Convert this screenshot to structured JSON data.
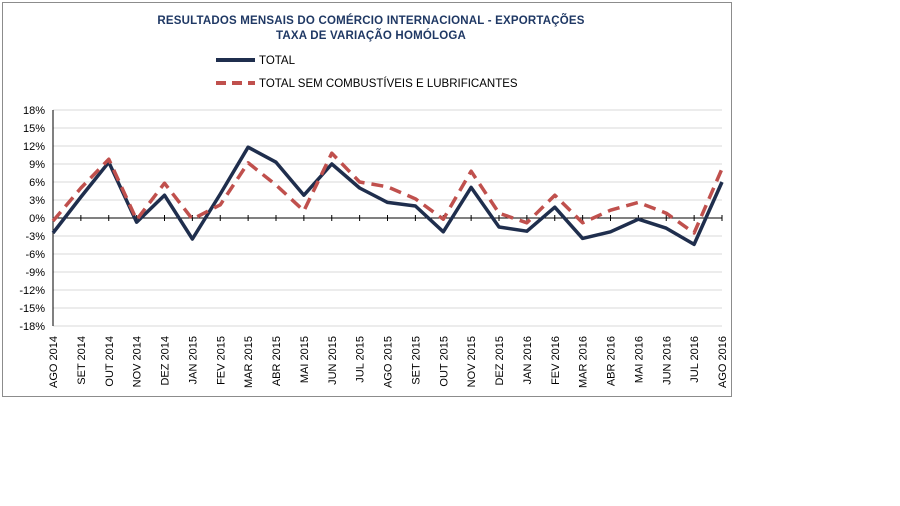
{
  "chart_data": {
    "type": "line",
    "title": "RESULTADOS MENSAIS DO COMÉRCIO INTERNACIONAL  - EXPORTAÇÕES",
    "subtitle": "TAXA DE VARIAÇÃO HOMÓLOGA",
    "categories": [
      "AGO 2014",
      "SET 2014",
      "OUT 2014",
      "NOV 2014",
      "DEZ 2014",
      "JAN 2015",
      "FEV 2015",
      "MAR 2015",
      "ABR 2015",
      "MAI 2015",
      "JUN 2015",
      "JUL 2015",
      "AGO 2015",
      "SET 2015",
      "OUT 2015",
      "NOV 2015",
      "DEZ 2015",
      "JAN 2016",
      "FEV 2016",
      "MAR 2016",
      "ABR 2016",
      "MAI 2016",
      "JUN 2016",
      "JUL 2016",
      "AGO 2016"
    ],
    "ylim": [
      -18,
      18
    ],
    "yticks": [
      -18,
      -15,
      -12,
      -9,
      -6,
      -3,
      0,
      3,
      6,
      9,
      12,
      15,
      18
    ],
    "ytick_labels": [
      "-18%",
      "-15%",
      "-12%",
      "-9%",
      "-6%",
      "-3%",
      "0%",
      "3%",
      "6%",
      "9%",
      "12%",
      "15%",
      "18%"
    ],
    "grid": true,
    "legend_position": "top",
    "series": [
      {
        "name": "TOTAL",
        "color": "#1f2e4d",
        "style": "solid",
        "values": [
          -2.5,
          3.5,
          9.3,
          -0.7,
          3.8,
          -3.5,
          4.0,
          11.8,
          9.3,
          3.8,
          9.0,
          5.0,
          2.6,
          2.0,
          -2.3,
          5.1,
          -1.5,
          -2.2,
          1.8,
          -3.4,
          -2.3,
          -0.2,
          -1.7,
          -4.4,
          6.0
        ]
      },
      {
        "name": "TOTAL SEM COMBUSTÍVEIS E LUBRIFICANTES",
        "color": "#c0504d",
        "style": "dashed",
        "values": [
          -0.5,
          5.0,
          9.8,
          -0.3,
          5.8,
          -0.2,
          2.2,
          9.2,
          5.5,
          1.2,
          10.8,
          6.0,
          5.2,
          3.2,
          -0.2,
          7.8,
          0.8,
          -0.8,
          3.8,
          -0.8,
          1.3,
          2.6,
          0.8,
          -2.5,
          8.2
        ]
      }
    ]
  }
}
